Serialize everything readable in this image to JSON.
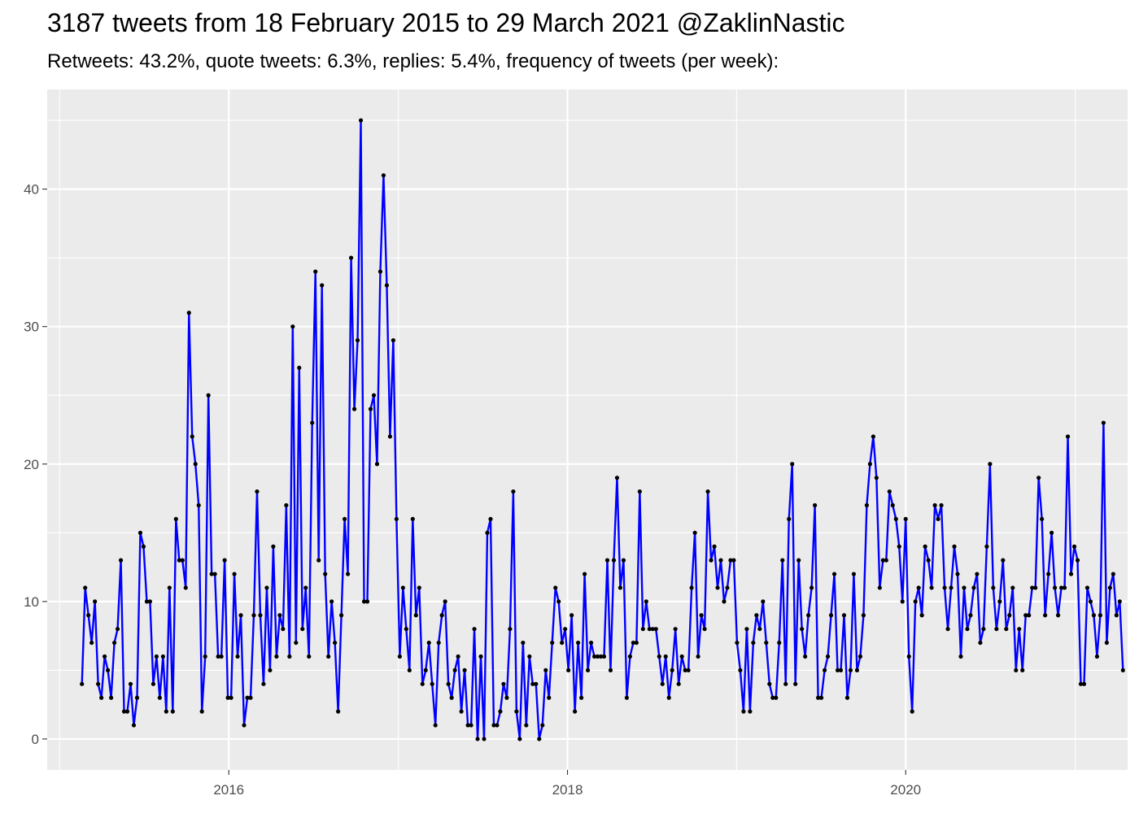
{
  "title": "3187 tweets from 18 February 2015 to 29 March 2021 @ZaklinNastic",
  "subtitle": "Retweets: 43.2%, quote tweets: 6.3%, replies: 5.4%, frequency of tweets (per week):",
  "colors": {
    "panel": "#ebebeb",
    "grid": "#ffffff",
    "line": "#0000ff",
    "point": "#000000"
  },
  "chart_data": {
    "type": "line",
    "title": "3187 tweets from 18 February 2015 to 29 March 2021 @ZaklinNastic",
    "subtitle": "Retweets: 43.2%, quote tweets: 6.3%, replies: 5.4%, frequency of tweets (per week):",
    "xlabel": "",
    "ylabel": "",
    "x_start": "2015-02-18",
    "x_step_days": 7,
    "xlim": [
      "2014-12-05",
      "2021-04-24"
    ],
    "ylim": [
      -2.25,
      47.25
    ],
    "x_ticks": [
      {
        "date": "2016-01-01",
        "label": "2016"
      },
      {
        "date": "2018-01-01",
        "label": "2018"
      },
      {
        "date": "2020-01-01",
        "label": "2020"
      }
    ],
    "x_minor_ticks": [
      "2015-01-01",
      "2017-01-01",
      "2019-01-01",
      "2021-01-01"
    ],
    "y_ticks": [
      0,
      10,
      20,
      30,
      40
    ],
    "y_minor_ticks": [
      5,
      15,
      25,
      35,
      45
    ],
    "grid": true,
    "legend": "none",
    "series": [
      {
        "values": [
          4,
          11,
          9,
          7,
          10,
          4,
          3,
          6,
          5,
          3,
          7,
          8,
          13,
          2,
          2,
          4,
          1,
          3,
          15,
          14,
          10,
          10,
          4,
          6,
          3,
          6,
          2,
          11,
          2,
          16,
          13,
          13,
          11,
          31,
          22,
          20,
          17,
          2,
          6,
          25,
          12,
          12,
          6,
          6,
          13,
          3,
          3,
          12,
          6,
          9,
          1,
          3,
          3,
          9,
          18,
          9,
          4,
          11,
          5,
          14,
          6,
          9,
          8,
          17,
          6,
          30,
          7,
          27,
          8,
          11,
          6,
          23,
          34,
          13,
          33,
          12,
          6,
          10,
          7,
          2,
          9,
          16,
          12,
          35,
          24,
          29,
          45,
          10,
          10,
          24,
          25,
          20,
          34,
          41,
          33,
          22,
          29,
          16,
          6,
          11,
          8,
          5,
          16,
          9,
          11,
          4,
          5,
          7,
          4,
          1,
          7,
          9,
          10,
          4,
          3,
          5,
          6,
          2,
          5,
          1,
          1,
          8,
          0,
          6,
          0,
          15,
          16,
          1,
          1,
          2,
          4,
          3,
          8,
          18,
          2,
          0,
          7,
          1,
          6,
          4,
          4,
          0,
          1,
          5,
          3,
          7,
          11,
          10,
          7,
          8,
          5,
          9,
          2,
          7,
          3,
          12,
          5,
          7,
          6,
          6,
          6,
          6,
          13,
          5,
          13,
          19,
          11,
          13,
          3,
          6,
          7,
          7,
          18,
          8,
          10,
          8,
          8,
          8,
          6,
          4,
          6,
          3,
          5,
          8,
          4,
          6,
          5,
          5,
          11,
          15,
          6,
          9,
          8,
          18,
          13,
          14,
          11,
          13,
          10,
          11,
          13,
          13,
          7,
          5,
          2,
          8,
          2,
          7,
          9,
          8,
          10,
          7,
          4,
          3,
          3,
          7,
          13,
          4,
          16,
          20,
          4,
          13,
          8,
          6,
          9,
          11,
          17,
          3,
          3,
          5,
          6,
          9,
          12,
          5,
          5,
          9,
          3,
          5,
          12,
          5,
          6,
          9,
          17,
          20,
          22,
          19,
          11,
          13,
          13,
          18,
          17,
          16,
          14,
          10,
          16,
          6,
          2,
          10,
          11,
          9,
          14,
          13,
          11,
          17,
          16,
          17,
          11,
          8,
          11,
          14,
          12,
          6,
          11,
          8,
          9,
          11,
          12,
          7,
          8,
          14,
          20,
          11,
          8,
          10,
          13,
          8,
          9,
          11,
          5,
          8,
          5,
          9,
          9,
          11,
          11,
          19,
          16,
          9,
          12,
          15,
          11,
          9,
          11,
          11,
          22,
          12,
          14,
          13,
          4,
          4,
          11,
          10,
          9,
          6,
          9,
          23,
          7,
          11,
          12,
          9,
          10,
          5
        ]
      }
    ]
  }
}
